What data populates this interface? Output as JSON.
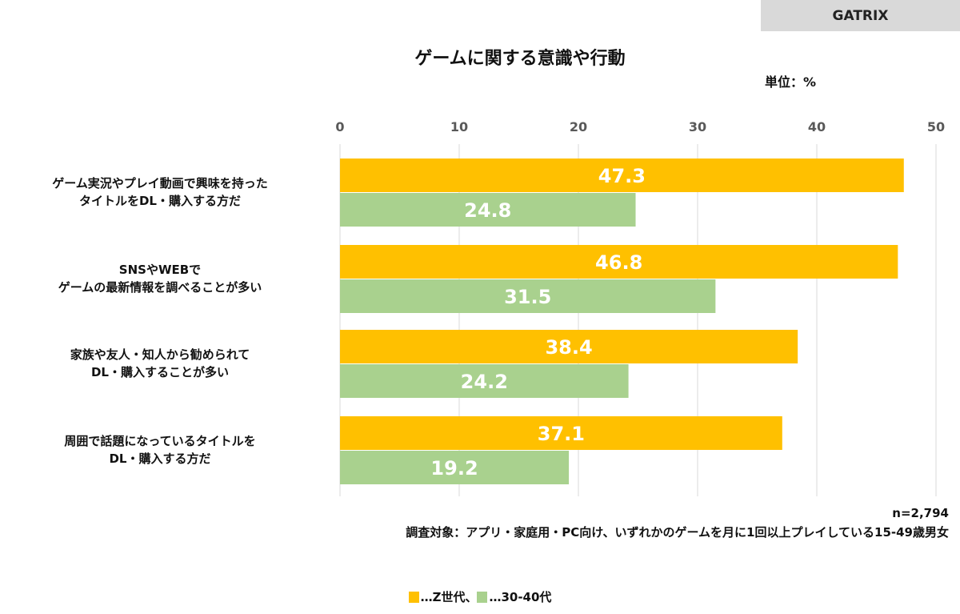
{
  "brand": "GATRIX",
  "unit_label": "単位：%",
  "sample_size": "n=2,794",
  "survey_note": "調査対象：アプリ・家庭用・PC向け、いずれかのゲームを月に1回以上プレイしている15-49歳男女",
  "legend": [
    {
      "label": "…Z世代、",
      "color": "#ffc000"
    },
    {
      "label": "…30-40代",
      "color": "#a9d18e"
    }
  ],
  "chart_data": {
    "type": "bar",
    "orientation": "horizontal",
    "title": "ゲームに関する意識や行動",
    "categories": [
      [
        "ゲーム実況やプレイ動画で興味を持った",
        "タイトルをDL・購入する方だ"
      ],
      [
        "SNSやWEBで",
        "ゲームの最新情報を調べることが多い"
      ],
      [
        "家族や友人・知人から勧められて",
        "DL・購入することが多い"
      ],
      [
        "周囲で話題になっているタイトルを",
        "DL・購入する方だ"
      ]
    ],
    "series": [
      {
        "name": "Z世代",
        "color": "#ffc000",
        "values": [
          47.3,
          46.8,
          38.4,
          37.1
        ]
      },
      {
        "name": "30-40代",
        "color": "#a9d18e",
        "values": [
          24.8,
          31.5,
          24.2,
          19.2
        ]
      }
    ],
    "xlim": [
      0,
      50
    ],
    "ticks": [
      "0",
      "10",
      "20",
      "30",
      "40",
      "50"
    ],
    "tick_position": "top",
    "grid": true,
    "legend_position": "bottom"
  }
}
